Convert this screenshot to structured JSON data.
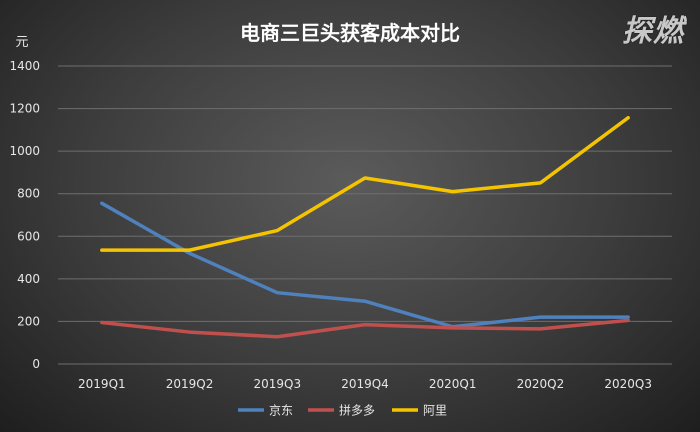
{
  "logo_text": "探燃",
  "chart_data": {
    "type": "line",
    "title": "电商三巨头获客成本对比",
    "ylabel": "元",
    "ylim": [
      0,
      1400
    ],
    "yticks": [
      0,
      200,
      400,
      600,
      800,
      1000,
      1200,
      1400
    ],
    "categories": [
      "2019Q1",
      "2019Q2",
      "2019Q3",
      "2019Q4",
      "2020Q1",
      "2020Q2",
      "2020Q3"
    ],
    "grid": true,
    "legend_position": "bottom",
    "series": [
      {
        "name": "京东",
        "color": "#4f81bd",
        "values": [
          755,
          520,
          335,
          295,
          175,
          220,
          220
        ]
      },
      {
        "name": "拼多多",
        "color": "#c0504d",
        "values": [
          195,
          150,
          128,
          185,
          170,
          165,
          205
        ]
      },
      {
        "name": "阿里",
        "color": "#f5c400",
        "values": [
          535,
          535,
          627,
          874,
          810,
          851,
          1157
        ]
      }
    ]
  }
}
